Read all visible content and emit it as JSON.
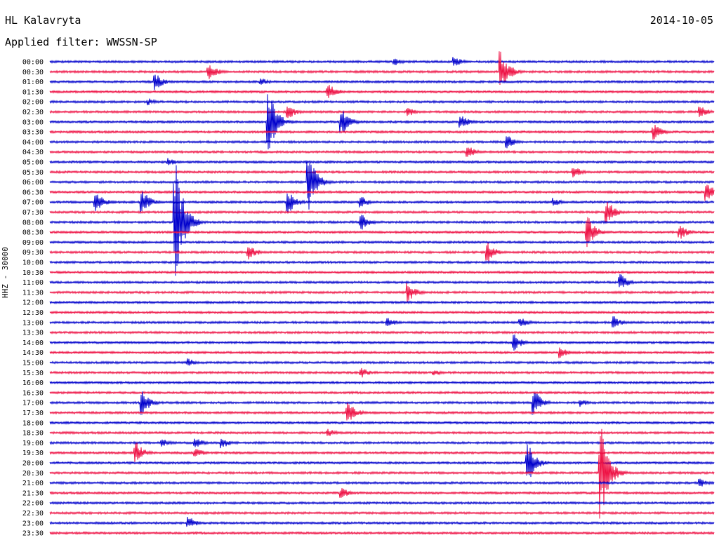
{
  "header": {
    "station": "HL Kalavryta",
    "date": "2014-10-05",
    "filter": "Applied filter: WWSSN-SP"
  },
  "chart_data": {
    "type": "line",
    "title": "HL Kalavryta",
    "ylabel": "HHZ - 30000",
    "series_colors": [
      "#0000cc",
      "#ee1144"
    ],
    "row_labels": [
      "00:00",
      "00:30",
      "01:00",
      "01:30",
      "02:00",
      "02:30",
      "03:00",
      "03:30",
      "04:00",
      "04:30",
      "05:00",
      "05:30",
      "06:00",
      "06:30",
      "07:00",
      "07:30",
      "08:00",
      "08:30",
      "09:00",
      "09:30",
      "10:00",
      "10:30",
      "11:00",
      "11:30",
      "12:00",
      "12:30",
      "13:00",
      "13:30",
      "14:00",
      "14:30",
      "15:00",
      "15:30",
      "16:00",
      "16:30",
      "17:00",
      "17:30",
      "18:00",
      "18:30",
      "19:00",
      "19:30",
      "20:00",
      "20:30",
      "21:00",
      "21:30",
      "22:00",
      "22:30",
      "23:00",
      "23:30"
    ],
    "events": [
      {
        "row": 0,
        "t": 0.52,
        "amp": 6
      },
      {
        "row": 0,
        "t": 0.61,
        "amp": 8
      },
      {
        "row": 1,
        "t": 0.24,
        "amp": 14
      },
      {
        "row": 1,
        "t": 0.68,
        "amp": 30
      },
      {
        "row": 2,
        "t": 0.16,
        "amp": 12
      },
      {
        "row": 2,
        "t": 0.32,
        "amp": 5
      },
      {
        "row": 3,
        "t": 0.42,
        "amp": 14
      },
      {
        "row": 4,
        "t": 0.15,
        "amp": 5
      },
      {
        "row": 5,
        "t": 0.36,
        "amp": 10
      },
      {
        "row": 5,
        "t": 0.54,
        "amp": 7
      },
      {
        "row": 5,
        "t": 0.98,
        "amp": 9
      },
      {
        "row": 6,
        "t": 0.33,
        "amp": 45
      },
      {
        "row": 6,
        "t": 0.44,
        "amp": 20
      },
      {
        "row": 6,
        "t": 0.62,
        "amp": 10
      },
      {
        "row": 7,
        "t": 0.91,
        "amp": 12
      },
      {
        "row": 8,
        "t": 0.69,
        "amp": 9
      },
      {
        "row": 9,
        "t": 0.63,
        "amp": 9
      },
      {
        "row": 10,
        "t": 0.18,
        "amp": 6
      },
      {
        "row": 11,
        "t": 0.79,
        "amp": 8
      },
      {
        "row": 12,
        "t": 0.39,
        "amp": 40
      },
      {
        "row": 13,
        "t": 0.99,
        "amp": 14
      },
      {
        "row": 14,
        "t": 0.07,
        "amp": 16
      },
      {
        "row": 14,
        "t": 0.14,
        "amp": 18
      },
      {
        "row": 14,
        "t": 0.36,
        "amp": 16
      },
      {
        "row": 14,
        "t": 0.47,
        "amp": 8
      },
      {
        "row": 14,
        "t": 0.76,
        "amp": 6
      },
      {
        "row": 15,
        "t": 0.84,
        "amp": 18
      },
      {
        "row": 16,
        "t": 0.19,
        "amp": 95
      },
      {
        "row": 16,
        "t": 0.47,
        "amp": 12
      },
      {
        "row": 17,
        "t": 0.81,
        "amp": 25
      },
      {
        "row": 17,
        "t": 0.95,
        "amp": 10
      },
      {
        "row": 19,
        "t": 0.3,
        "amp": 12
      },
      {
        "row": 19,
        "t": 0.66,
        "amp": 14
      },
      {
        "row": 22,
        "t": 0.86,
        "amp": 12
      },
      {
        "row": 23,
        "t": 0.54,
        "amp": 14
      },
      {
        "row": 26,
        "t": 0.51,
        "amp": 8
      },
      {
        "row": 26,
        "t": 0.71,
        "amp": 8
      },
      {
        "row": 26,
        "t": 0.85,
        "amp": 9
      },
      {
        "row": 28,
        "t": 0.7,
        "amp": 12
      },
      {
        "row": 29,
        "t": 0.77,
        "amp": 8
      },
      {
        "row": 30,
        "t": 0.21,
        "amp": 6
      },
      {
        "row": 31,
        "t": 0.47,
        "amp": 8
      },
      {
        "row": 31,
        "t": 0.58,
        "amp": 5
      },
      {
        "row": 34,
        "t": 0.14,
        "amp": 18
      },
      {
        "row": 34,
        "t": 0.73,
        "amp": 18
      },
      {
        "row": 34,
        "t": 0.8,
        "amp": 6
      },
      {
        "row": 35,
        "t": 0.45,
        "amp": 16
      },
      {
        "row": 37,
        "t": 0.42,
        "amp": 6
      },
      {
        "row": 38,
        "t": 0.17,
        "amp": 6
      },
      {
        "row": 38,
        "t": 0.22,
        "amp": 8
      },
      {
        "row": 38,
        "t": 0.26,
        "amp": 8
      },
      {
        "row": 39,
        "t": 0.13,
        "amp": 16
      },
      {
        "row": 39,
        "t": 0.22,
        "amp": 8
      },
      {
        "row": 40,
        "t": 0.72,
        "amp": 30
      },
      {
        "row": 41,
        "t": 0.83,
        "amp": 70
      },
      {
        "row": 42,
        "t": 0.98,
        "amp": 6
      },
      {
        "row": 43,
        "t": 0.44,
        "amp": 8
      },
      {
        "row": 46,
        "t": 0.21,
        "amp": 9
      }
    ]
  }
}
